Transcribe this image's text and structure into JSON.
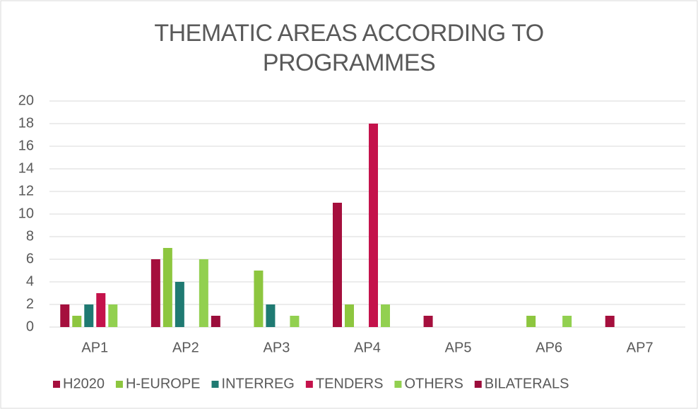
{
  "chart_data": {
    "type": "bar",
    "title": "THEMATIC AREAS ACCORDING TO PROGRAMMES",
    "categories": [
      "AP1",
      "AP2",
      "AP3",
      "AP4",
      "AP5",
      "AP6",
      "AP7"
    ],
    "series": [
      {
        "name": "H2020",
        "color": "#a50f3d",
        "values": [
          2,
          6,
          0,
          11,
          1,
          0,
          1
        ]
      },
      {
        "name": "H-EUROPE",
        "color": "#8dc63f",
        "values": [
          1,
          7,
          5,
          2,
          0,
          1,
          0
        ]
      },
      {
        "name": "INTERREG",
        "color": "#1f7a72",
        "values": [
          2,
          4,
          2,
          0,
          0,
          0,
          0
        ]
      },
      {
        "name": "TENDERS",
        "color": "#c4124b",
        "values": [
          3,
          0,
          0,
          18,
          0,
          0,
          0
        ]
      },
      {
        "name": "OTHERS",
        "color": "#92d050",
        "values": [
          2,
          6,
          1,
          2,
          0,
          1,
          0
        ]
      },
      {
        "name": "BILATERALS",
        "color": "#9b0d3b",
        "values": [
          0,
          1,
          0,
          0,
          0,
          0,
          0
        ]
      }
    ],
    "ylim": [
      0,
      20
    ],
    "yticks": [
      0,
      2,
      4,
      6,
      8,
      10,
      12,
      14,
      16,
      18,
      20
    ],
    "grid": true,
    "legend": "bottom"
  }
}
